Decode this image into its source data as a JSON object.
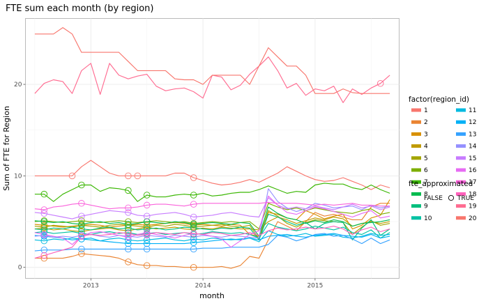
{
  "chart_data": {
    "type": "line",
    "title": "FTE sum each month (by region)",
    "xlabel": "month",
    "ylabel": "Sum of FTE for Region",
    "x_ticks": [
      "2013",
      "2014",
      "2015"
    ],
    "y_ticks": [
      0,
      10,
      20
    ],
    "xlim": [
      "2012-06-01",
      "2015-10-01"
    ],
    "ylim": [
      -1.2,
      27.2
    ],
    "grid": true,
    "legend": {
      "position": "right",
      "color_title": "factor(region_id)",
      "shape_title": "fte_approximated",
      "shape_false_label": "FALSE",
      "shape_true_label": "TRUE"
    },
    "x": [
      "2012-07",
      "2012-08",
      "2012-09",
      "2012-10",
      "2012-11",
      "2012-12",
      "2013-01",
      "2013-02",
      "2013-03",
      "2013-04",
      "2013-05",
      "2013-06",
      "2013-07",
      "2013-08",
      "2013-09",
      "2013-10",
      "2013-11",
      "2013-12",
      "2014-01",
      "2014-02",
      "2014-03",
      "2014-04",
      "2014-05",
      "2014-06",
      "2014-07",
      "2014-08",
      "2014-09",
      "2014-10",
      "2014-11",
      "2014-12",
      "2015-01",
      "2015-02",
      "2015-03",
      "2015-04",
      "2015-05",
      "2015-06",
      "2015-07",
      "2015-08",
      "2015-09"
    ],
    "series": [
      {
        "name": "1",
        "color": "#F8766D",
        "values": [
          10,
          10,
          10,
          10,
          10,
          11,
          11.7,
          11,
          10.3,
          10,
          10,
          10,
          10,
          10,
          10,
          10.3,
          10.3,
          9.8,
          9.5,
          9.2,
          9,
          9.1,
          9.3,
          9.6,
          9.3,
          9.8,
          10.3,
          11,
          10.5,
          10,
          9.6,
          9.4,
          9.5,
          9.8,
          9.4,
          9,
          8.5,
          9,
          8.7
        ],
        "approx": [
          4,
          10,
          11,
          17
        ]
      },
      {
        "name": "2",
        "color": "#EA8331",
        "values": [
          1,
          1,
          1,
          1,
          1.2,
          1.5,
          1.4,
          1.3,
          1.2,
          1,
          0.6,
          0.3,
          0.2,
          0.2,
          0.1,
          0.1,
          0,
          0,
          0,
          0,
          0.1,
          -0.1,
          0.2,
          1.2,
          1,
          3,
          5,
          4.5,
          4,
          5,
          6,
          5.6,
          5.8,
          5.5,
          5.2,
          5.2,
          6.6,
          7,
          7
        ],
        "approx": [
          1,
          5,
          10,
          12,
          17
        ]
      },
      {
        "name": "3",
        "color": "#D89000",
        "values": [
          4.7,
          4.6,
          4.5,
          4.4,
          4.5,
          4.6,
          4.7,
          4.6,
          4.4,
          4.5,
          4.6,
          4.7,
          4.6,
          4.7,
          4.8,
          4.9,
          4.8,
          4.6,
          4.7,
          4.6,
          4.5,
          4.7,
          4.6,
          3.6,
          3.4,
          6,
          5.8,
          5.4,
          5.2,
          6.2,
          5.8,
          5.3,
          5.6,
          5.8,
          4.2,
          4.6,
          5.4,
          5.7,
          7.4
        ],
        "approx": [
          1,
          5,
          10,
          12,
          17
        ]
      },
      {
        "name": "4",
        "color": "#C09B00",
        "values": [
          4.2,
          4.3,
          4.1,
          4.2,
          4,
          3.9,
          4.1,
          4.2,
          4.3,
          4.1,
          4,
          4.2,
          4.4,
          4.2,
          4.3,
          4.4,
          4.2,
          4.1,
          4.3,
          4.2,
          4.4,
          4.3,
          4.2,
          4.2,
          4.1,
          5,
          5.5,
          5.2,
          4.8,
          5.1,
          5.4,
          5.2,
          5.5,
          5.3,
          4.5,
          4.8,
          5,
          4.8,
          5
        ],
        "approx": [
          1,
          5,
          10,
          12
        ]
      },
      {
        "name": "5",
        "color": "#A3A500",
        "values": [
          4.5,
          4.4,
          4.6,
          4.5,
          4.4,
          4.6,
          4.5,
          4.4,
          4.6,
          4.7,
          4.6,
          4.5,
          4.4,
          4.6,
          4.5,
          4.7,
          4.6,
          4.4,
          4.5,
          4.6,
          4.7,
          4.5,
          4.4,
          4.6,
          3.1,
          6.2,
          5.6,
          4.8,
          4.4,
          4.9,
          5.2,
          5.1,
          5,
          4.9,
          3.6,
          4.4,
          5.1,
          4.6,
          4.8
        ],
        "approx": [
          1,
          5,
          10,
          12,
          17
        ]
      },
      {
        "name": "6",
        "color": "#7CAE00",
        "values": [
          5,
          5.1,
          5,
          4.9,
          5,
          5.1,
          5,
          4.9,
          5,
          5.1,
          5,
          4.9,
          5,
          5.1,
          5,
          4.9,
          5,
          4.8,
          4.9,
          5,
          4.9,
          5,
          4.9,
          5,
          4.2,
          7,
          6.6,
          6.3,
          6.5,
          6.2,
          6.5,
          6.3,
          6.1,
          6,
          5.9,
          6.2,
          6.4,
          5.8,
          6
        ],
        "approx": [
          1,
          5,
          10,
          12,
          17
        ]
      },
      {
        "name": "7",
        "color": "#39B600",
        "values": [
          8,
          8,
          7.2,
          8,
          8.5,
          9,
          9,
          8.3,
          8.7,
          8.6,
          8.4,
          7.2,
          7.9,
          7.7,
          7.7,
          7.9,
          8,
          7.9,
          8.1,
          7.8,
          7.9,
          8.1,
          8.2,
          8.2,
          8.5,
          8.9,
          8.5,
          8.1,
          8.3,
          8.2,
          9,
          9.2,
          9.1,
          9.1,
          8.7,
          8.5,
          9,
          8.5,
          8.1
        ],
        "approx": [
          1,
          5,
          10,
          12,
          17
        ]
      },
      {
        "name": "8",
        "color": "#00BB4E",
        "values": [
          5.1,
          5,
          4.9,
          5,
          4.8,
          4.7,
          4.9,
          5,
          4.8,
          4.9,
          4.7,
          4.8,
          5,
          4.9,
          4.8,
          5,
          4.9,
          4.7,
          4.8,
          4.9,
          4.8,
          4.7,
          4.9,
          4.8,
          3.4,
          6.6,
          5.9,
          5.4,
          5.2,
          4.8,
          5.1,
          4.9,
          5.2,
          5,
          4.5,
          4.8,
          4.9,
          5,
          5.2
        ],
        "approx": [
          1,
          5,
          10,
          12,
          17
        ]
      },
      {
        "name": "9",
        "color": "#00BF7D",
        "values": [
          4.2,
          4.1,
          4.3,
          4.2,
          4.4,
          4.2,
          4.1,
          4.3,
          4.4,
          4.2,
          4.3,
          4.1,
          4.2,
          4.3,
          4.1,
          4.2,
          4.4,
          4.3,
          4.2,
          4.1,
          4.3,
          4.2,
          4.4,
          4.3,
          3,
          5.8,
          5.5,
          5,
          4.6,
          4.9,
          4.2,
          4.8,
          5,
          4.9,
          3,
          4.3,
          5.2,
          3.5,
          4.2
        ],
        "approx": [
          1,
          5,
          10,
          12,
          17
        ]
      },
      {
        "name": "10",
        "color": "#00C1A3",
        "values": [
          3.8,
          3.9,
          3.7,
          3.8,
          3.9,
          3.7,
          3.6,
          3.8,
          3.9,
          3.7,
          3.8,
          3.6,
          3.7,
          3.8,
          3.6,
          3.7,
          3.8,
          3.6,
          3.7,
          3.9,
          3.8,
          3.7,
          3.8,
          3.6,
          3.2,
          4.8,
          4.4,
          4.2,
          4,
          4.2,
          4.5,
          4.3,
          4.1,
          4.4,
          3.8,
          3.6,
          4.1,
          3.2,
          3.8
        ],
        "approx": [
          1,
          5,
          10,
          12,
          17
        ]
      },
      {
        "name": "11",
        "color": "#00BAE0",
        "values": [
          3,
          2.9,
          3.1,
          3,
          3.2,
          3.1,
          3,
          2.9,
          3.1,
          3.2,
          3,
          2.9,
          3,
          3.1,
          3.2,
          3,
          2.9,
          3.1,
          3,
          3.2,
          3.1,
          3,
          3.1,
          3.2,
          2.8,
          4,
          3.6,
          3.4,
          3.5,
          3.7,
          3.4,
          3.5,
          3.6,
          3.3,
          3.2,
          3.4,
          3.7,
          3.5,
          3.6
        ],
        "approx": [
          1,
          5,
          10,
          12,
          17
        ]
      },
      {
        "name": "12",
        "color": "#00B0F6",
        "values": [
          3.5,
          3.4,
          3.3,
          3.2,
          3,
          3.1,
          3.2,
          2.9,
          2.8,
          2.7,
          2.6,
          2.6,
          2.6,
          2.6,
          2.6,
          2.6,
          2.6,
          2.7,
          2.8,
          2.9,
          3,
          3.1,
          3,
          3.2,
          3,
          3.4,
          3.5,
          3.6,
          3.4,
          3.3,
          3.5,
          3.6,
          3.7,
          3.5,
          3.4,
          3.3,
          3.6,
          3.2,
          3.4
        ],
        "approx": [
          1,
          5,
          10,
          12,
          17
        ]
      },
      {
        "name": "13",
        "color": "#35A2FF",
        "values": [
          1.8,
          1.9,
          1.9,
          1.9,
          2,
          2,
          2,
          2,
          2,
          2,
          2,
          2,
          2,
          2,
          2,
          2,
          2,
          2,
          2.1,
          2.1,
          2.1,
          2.2,
          2.2,
          2.2,
          2.2,
          2.5,
          3.5,
          3.3,
          2.9,
          3.2,
          3.6,
          3.7,
          3.4,
          3.5,
          3.1,
          2.6,
          3.2,
          2.6,
          3
        ],
        "approx": [
          1,
          5,
          10,
          12,
          17
        ]
      },
      {
        "name": "14",
        "color": "#9590FF",
        "values": [
          3.4,
          3.5,
          3.3,
          3.4,
          3.3,
          3.5,
          3.6,
          3.4,
          3.3,
          3.5,
          3.4,
          3.3,
          3.5,
          3.4,
          3.3,
          3.5,
          3.4,
          3.3,
          3.5,
          3.4,
          3.3,
          3.5,
          3.4,
          3.3,
          3.2,
          8.6,
          7.2,
          6.5,
          6.1,
          6.4,
          7,
          6.8,
          6.5,
          6.6,
          6.7,
          6.3,
          6.8,
          6.5,
          6.7
        ],
        "approx": [
          1,
          5,
          10,
          12,
          17
        ]
      },
      {
        "name": "15",
        "color": "#C77CFF",
        "values": [
          6,
          5.9,
          5.7,
          5.5,
          5.3,
          5.6,
          5.8,
          6,
          6.2,
          6.1,
          6,
          5.7,
          5.6,
          5.8,
          5.9,
          6,
          5.8,
          5.5,
          5.6,
          5.7,
          5.9,
          6,
          5.8,
          5.6,
          5.5,
          7.6,
          6.8,
          6.4,
          6.6,
          6.4,
          6.7,
          6.5,
          6.3,
          6.6,
          6.9,
          6.5,
          6.7,
          6.3,
          6.6
        ],
        "approx": [
          1,
          5,
          10,
          12,
          17
        ]
      },
      {
        "name": "16",
        "color": "#E76BF3",
        "values": [
          3.8,
          3.6,
          3.4,
          3.2,
          2.5,
          3.4,
          3.8,
          3.9,
          3.7,
          3.5,
          3.3,
          3.6,
          3.8,
          3.6,
          3.4,
          3.2,
          3.5,
          3.7,
          3.6,
          3.4,
          3.1,
          2.2,
          2.9,
          3.6,
          4,
          7.8,
          6.8,
          6,
          5.8,
          6.2,
          6.6,
          6.4,
          6.1,
          5.8,
          5.5,
          5.9,
          6.2,
          5.4,
          5.6
        ],
        "approx": [
          1,
          5,
          10,
          12,
          17
        ]
      },
      {
        "name": "17",
        "color": "#FA62DB",
        "values": [
          6.4,
          6.3,
          6.6,
          6.7,
          6.9,
          7,
          6.8,
          6.6,
          6.4,
          6.5,
          6.5,
          6.6,
          6.8,
          6.9,
          6.9,
          6.8,
          6.7,
          6.9,
          7,
          7,
          7,
          7,
          7,
          7,
          7,
          7.1,
          7,
          7,
          7,
          6.9,
          6.8,
          6.9,
          6.8,
          6.9,
          7,
          6.8,
          6.8,
          6.7,
          6.7
        ],
        "approx": [
          1,
          5,
          10,
          12,
          17
        ]
      },
      {
        "name": "18",
        "color": "#FF62BC",
        "values": [
          1,
          1.3,
          1.6,
          1.9,
          2.2,
          3.4,
          3.6,
          3.5,
          3.6,
          3.8,
          3.7,
          3.5,
          3.6,
          3.8,
          3.7,
          3.6,
          3.8,
          3.7,
          3.6,
          3.8,
          3.7,
          3.5,
          3.6,
          3.8,
          3.5,
          4,
          4.3,
          4.1,
          4.2,
          4.4,
          4.2,
          4.3,
          4.5,
          4.2,
          3.6,
          4.1,
          4.4,
          3.9,
          4.2
        ],
        "approx": [
          1,
          5,
          10,
          12,
          17
        ]
      },
      {
        "name": "19",
        "color": "#FF6C91",
        "values": [
          19,
          20.1,
          20.5,
          20.3,
          19,
          21.5,
          22.3,
          18.9,
          22.3,
          21,
          20.6,
          20.9,
          21.1,
          19.8,
          19.3,
          19.5,
          19.6,
          19.2,
          18.5,
          21,
          20.8,
          19.4,
          19.9,
          21.1,
          22,
          23,
          21.5,
          19.6,
          20.1,
          18.8,
          19.5,
          19.3,
          19.8,
          18,
          19.5,
          18.9,
          19.6,
          20.1,
          21
        ],
        "approx": [
          37
        ]
      },
      {
        "name": "20",
        "color": "#F8766D",
        "values": [
          25.5,
          25.5,
          25.5,
          26.2,
          25.5,
          23.5,
          23.5,
          23.5,
          23.5,
          23.5,
          22.5,
          21.5,
          21.5,
          21.5,
          21.5,
          20.6,
          20.5,
          20.5,
          20,
          21,
          21,
          21,
          21,
          20,
          22,
          24,
          23,
          22,
          22,
          21,
          19,
          19,
          19,
          19.5,
          19.1,
          19,
          19,
          19,
          19
        ],
        "approx": []
      }
    ]
  }
}
